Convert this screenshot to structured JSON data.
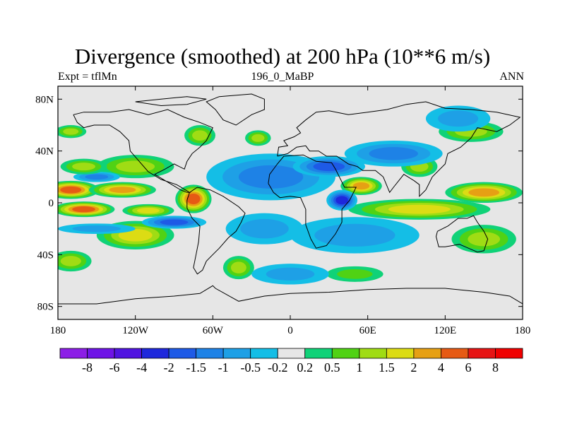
{
  "chart_data": {
    "type": "heatmap",
    "title": "Divergence (smoothed) at 200 hPa (10**6 m/s)",
    "subtitle_left": "Expt = tflMn",
    "subtitle_center": "196_0_MaBP",
    "subtitle_right": "ANN",
    "x_ticks": [
      {
        "value": -180,
        "label": "180"
      },
      {
        "value": -120,
        "label": "120W"
      },
      {
        "value": -60,
        "label": "60W"
      },
      {
        "value": 0,
        "label": "0"
      },
      {
        "value": 60,
        "label": "60E"
      },
      {
        "value": 120,
        "label": "120E"
      },
      {
        "value": 180,
        "label": "180"
      }
    ],
    "y_ticks": [
      {
        "value": 80,
        "label": "80N"
      },
      {
        "value": 40,
        "label": "40N"
      },
      {
        "value": 0,
        "label": "0"
      },
      {
        "value": -40,
        "label": "40S"
      },
      {
        "value": -80,
        "label": "80S"
      }
    ],
    "xlim": [
      -180,
      180
    ],
    "ylim": [
      -90,
      90
    ],
    "colorbar": {
      "levels": [
        "-8",
        "-6",
        "-4",
        "-2",
        "-1.5",
        "-1",
        "-0.5",
        "-0.2",
        "0.2",
        "0.5",
        "1",
        "1.5",
        "2",
        "4",
        "6",
        "8"
      ],
      "colors": [
        "#8c1ee6",
        "#6e14e6",
        "#5014e0",
        "#1e28dc",
        "#1e5ae6",
        "#1e82e6",
        "#1ea0e6",
        "#14bee6",
        "#e6e6e6",
        "#10d278",
        "#50d214",
        "#a0dc14",
        "#dcdc14",
        "#e6a014",
        "#e65a14",
        "#e61414",
        "#f00000"
      ]
    },
    "blobs": [
      {
        "lon": -170,
        "lat": 10,
        "rx": 22,
        "ry": 7,
        "v": 4
      },
      {
        "lon": -130,
        "lat": 10,
        "rx": 26,
        "ry": 6,
        "v": 2
      },
      {
        "lon": -160,
        "lat": -5,
        "rx": 24,
        "ry": 6,
        "v": 4
      },
      {
        "lon": -110,
        "lat": -6,
        "rx": 20,
        "ry": 5,
        "v": 1.5
      },
      {
        "lon": -75,
        "lat": 3,
        "rx": 14,
        "ry": 11,
        "v": 4
      },
      {
        "lon": -120,
        "lat": 28,
        "rx": 30,
        "ry": 9,
        "v": 1
      },
      {
        "lon": -120,
        "lat": -25,
        "rx": 30,
        "ry": 11,
        "v": 1.5
      },
      {
        "lon": -170,
        "lat": -45,
        "rx": 16,
        "ry": 8,
        "v": 1
      },
      {
        "lon": -170,
        "lat": 55,
        "rx": 12,
        "ry": 5,
        "v": 1
      },
      {
        "lon": -70,
        "lat": 52,
        "rx": 12,
        "ry": 8,
        "v": 1
      },
      {
        "lon": -25,
        "lat": 50,
        "rx": 10,
        "ry": 6,
        "v": 1
      },
      {
        "lon": 55,
        "lat": 13,
        "rx": 16,
        "ry": 7,
        "v": 2
      },
      {
        "lon": 100,
        "lat": 28,
        "rx": 14,
        "ry": 8,
        "v": 1
      },
      {
        "lon": 150,
        "lat": 8,
        "rx": 30,
        "ry": 8,
        "v": 2
      },
      {
        "lon": 100,
        "lat": -5,
        "rx": 55,
        "ry": 8,
        "v": 1.5
      },
      {
        "lon": 150,
        "lat": -28,
        "rx": 25,
        "ry": 11,
        "v": 1
      },
      {
        "lon": 50,
        "lat": -55,
        "rx": 22,
        "ry": 6,
        "v": 0.5
      },
      {
        "lon": 140,
        "lat": 55,
        "rx": 25,
        "ry": 8,
        "v": 1
      },
      {
        "lon": -40,
        "lat": -50,
        "rx": 12,
        "ry": 9,
        "v": 1
      },
      {
        "lon": -15,
        "lat": 20,
        "rx": 50,
        "ry": 18,
        "v": -1
      },
      {
        "lon": -90,
        "lat": -15,
        "rx": 25,
        "ry": 5,
        "v": -1.5
      },
      {
        "lon": -150,
        "lat": 20,
        "rx": 18,
        "ry": 4,
        "v": -1
      },
      {
        "lon": 30,
        "lat": 28,
        "rx": 28,
        "ry": 8,
        "v": -1.5
      },
      {
        "lon": 80,
        "lat": 38,
        "rx": 38,
        "ry": 10,
        "v": -1
      },
      {
        "lon": 40,
        "lat": 2,
        "rx": 12,
        "ry": 8,
        "v": -2
      },
      {
        "lon": -20,
        "lat": -20,
        "rx": 30,
        "ry": 12,
        "v": -0.5
      },
      {
        "lon": 50,
        "lat": -25,
        "rx": 50,
        "ry": 14,
        "v": -0.5
      },
      {
        "lon": 130,
        "lat": 65,
        "rx": 25,
        "ry": 10,
        "v": -0.5
      },
      {
        "lon": 0,
        "lat": -55,
        "rx": 30,
        "ry": 8,
        "v": -0.5
      },
      {
        "lon": -150,
        "lat": -20,
        "rx": 30,
        "ry": 4,
        "v": -0.5
      },
      {
        "lon": -160,
        "lat": 28,
        "rx": 18,
        "ry": 6,
        "v": 1
      }
    ]
  }
}
